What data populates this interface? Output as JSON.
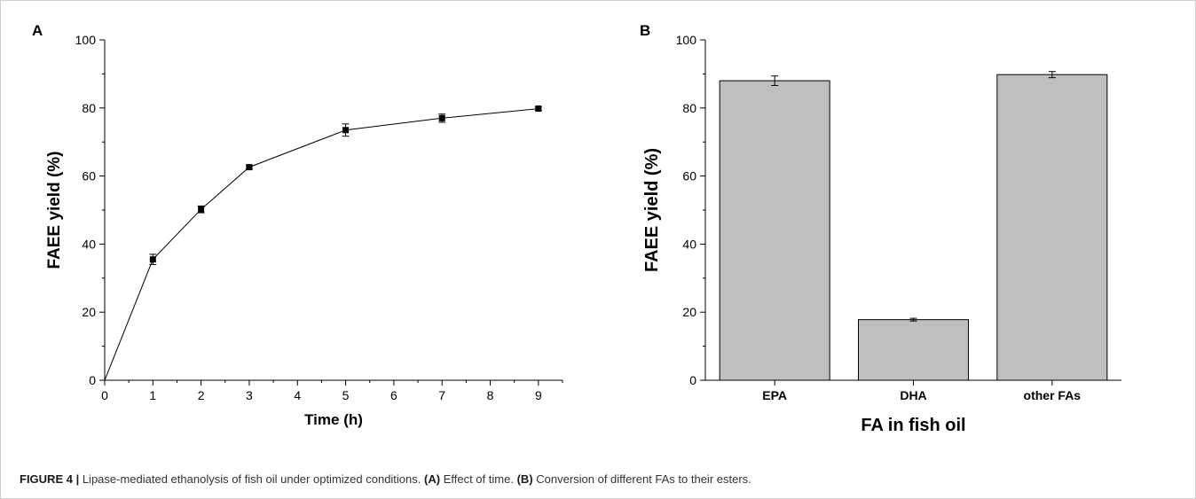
{
  "caption": {
    "label": "FIGURE 4 |",
    "text": "Lipase-mediated ethanolysis of fish oil under optimized conditions.",
    "a_ref": "(A)",
    "a_text": "Effect of time.",
    "b_ref": "(B)",
    "b_text": "Conversion of different FAs to their esters."
  },
  "chart_data": [
    {
      "panel": "A",
      "type": "line",
      "xlabel": "Time (h)",
      "ylabel": "FAEE yield (%)",
      "xlim": [
        0,
        9.5
      ],
      "ylim": [
        0,
        100
      ],
      "x_ticks": [
        0,
        1,
        2,
        3,
        4,
        5,
        6,
        7,
        8,
        9
      ],
      "y_ticks": [
        0,
        20,
        40,
        60,
        80,
        100
      ],
      "grid": false,
      "series": [
        {
          "x": [
            0,
            1,
            2,
            3,
            5,
            7,
            9
          ],
          "y": [
            0,
            35.5,
            50.2,
            62.6,
            73.5,
            77.0,
            79.8
          ],
          "error": [
            0,
            1.5,
            1.0,
            0.5,
            1.8,
            1.2,
            0.5
          ],
          "marker": "square",
          "color": "#000000"
        }
      ]
    },
    {
      "panel": "B",
      "type": "bar",
      "xlabel": "FA in fish oil",
      "ylabel": "FAEE yield (%)",
      "ylim": [
        0,
        100
      ],
      "y_ticks": [
        0,
        20,
        40,
        60,
        80,
        100
      ],
      "grid": false,
      "categories": [
        "EPA",
        "DHA",
        "other FAs"
      ],
      "values": [
        88.0,
        17.8,
        89.8
      ],
      "error": [
        1.4,
        0.4,
        0.9
      ],
      "bar_color": "#bfbfbf"
    }
  ]
}
